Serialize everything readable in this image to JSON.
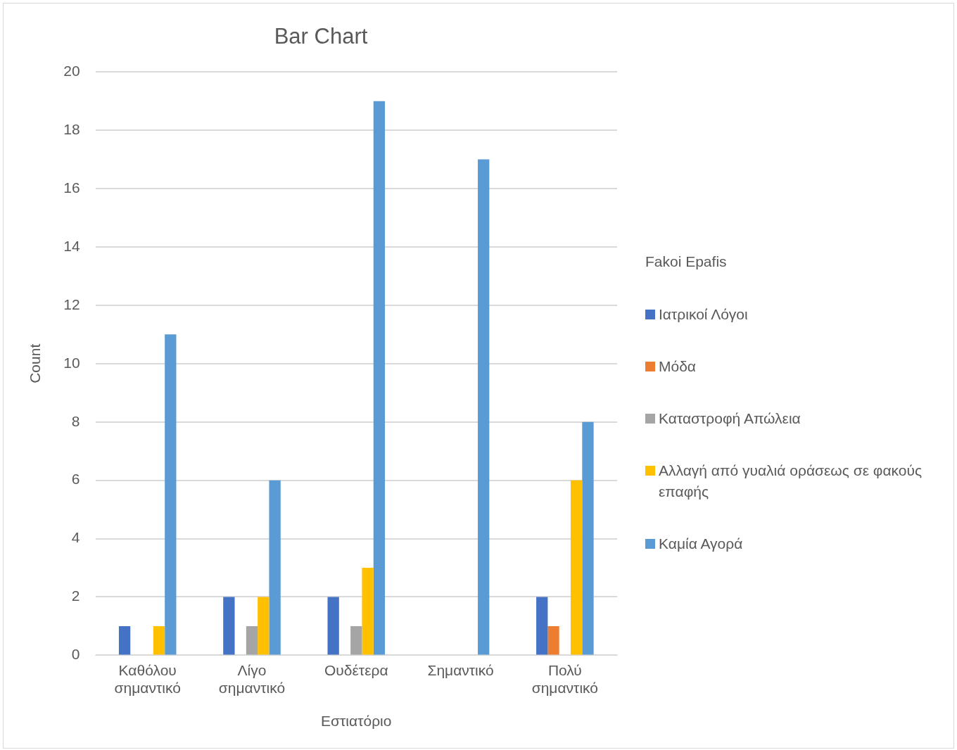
{
  "chart_data": {
    "type": "bar",
    "title": "Bar Chart",
    "xlabel": "Εστιατόριο",
    "ylabel": "Count",
    "legend_title": "Fakoi Epafis",
    "categories": [
      "Καθόλου σημαντικό",
      "Λίγο σημαντικό",
      "Ουδέτερα",
      "Σημαντικό",
      "Πολύ σημαντικό"
    ],
    "series": [
      {
        "name": "Ιατρικοί Λόγοι",
        "color": "#4472c4",
        "values": [
          1,
          2,
          2,
          0,
          2
        ]
      },
      {
        "name": "Μόδα",
        "color": "#ed7d31",
        "values": [
          0,
          0,
          0,
          0,
          1
        ]
      },
      {
        "name": "Καταστροφή Απώλεια",
        "color": "#a5a5a5",
        "values": [
          0,
          1,
          1,
          0,
          0
        ]
      },
      {
        "name": "Αλλαγή από γυαλιά οράσεως σε φακούς επαφής",
        "color": "#ffc000",
        "values": [
          1,
          2,
          3,
          0,
          6
        ]
      },
      {
        "name": "Καμία Αγορά",
        "color": "#5b9bd5",
        "values": [
          11,
          6,
          19,
          17,
          8
        ]
      }
    ],
    "ylim": [
      0,
      20
    ],
    "yticks": [
      0,
      2,
      4,
      6,
      8,
      10,
      12,
      14,
      16,
      18,
      20
    ],
    "grid": "y",
    "legend": "right"
  }
}
